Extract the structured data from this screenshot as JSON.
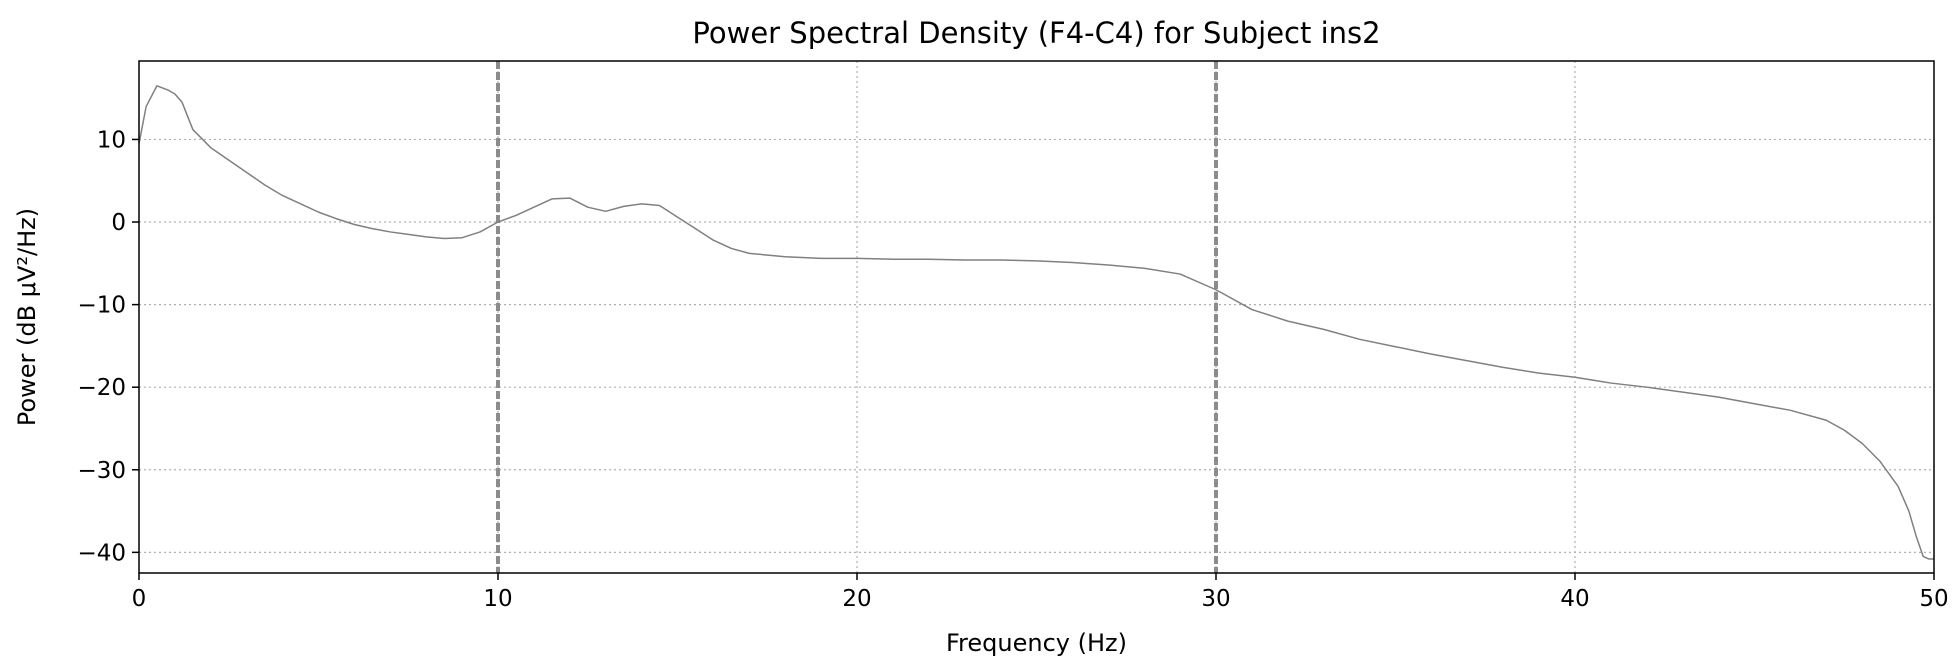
{
  "chart_data": {
    "type": "line",
    "title": "Power Spectral Density (F4-C4) for Subject ins2",
    "xlabel": "Frequency (Hz)",
    "ylabel": "Power (dB μV²/Hz)",
    "xlim": [
      0,
      50
    ],
    "ylim": [
      -42.5,
      19.5
    ],
    "xticks": [
      0,
      10,
      20,
      30,
      40,
      50
    ],
    "xtick_labels": [
      "0",
      "10",
      "20",
      "30",
      "40",
      "50"
    ],
    "yticks": [
      10,
      0,
      -10,
      -20,
      -30,
      -40
    ],
    "ytick_labels": [
      "10",
      "0",
      "−10",
      "−20",
      "−30",
      "−40"
    ],
    "grid": true,
    "vertical_markers": [
      10,
      30
    ],
    "series": [
      {
        "name": "F4-C4",
        "color": "#808080",
        "x": [
          0,
          0.2,
          0.5,
          0.8,
          1.0,
          1.2,
          1.5,
          2.0,
          2.5,
          3.0,
          3.5,
          4.0,
          4.5,
          5.0,
          5.5,
          6.0,
          6.5,
          7.0,
          7.5,
          8.0,
          8.5,
          9.0,
          9.5,
          10.0,
          10.5,
          11.0,
          11.5,
          12.0,
          12.5,
          13.0,
          13.5,
          14.0,
          14.5,
          15.0,
          15.5,
          16.0,
          16.5,
          17.0,
          18.0,
          19.0,
          20.0,
          21.0,
          22.0,
          23.0,
          24.0,
          25.0,
          26.0,
          27.0,
          28.0,
          29.0,
          30.0,
          31.0,
          32.0,
          33.0,
          34.0,
          35.0,
          36.0,
          37.0,
          38.0,
          39.0,
          40.0,
          41.0,
          42.0,
          43.0,
          44.0,
          45.0,
          46.0,
          47.0,
          47.5,
          48.0,
          48.5,
          49.0,
          49.3,
          49.5,
          49.7,
          49.85,
          50.0
        ],
        "y": [
          9.5,
          14,
          16.5,
          16,
          15.5,
          14.5,
          11.2,
          9,
          7.5,
          6,
          4.5,
          3.2,
          2.2,
          1.2,
          0.4,
          -0.3,
          -0.8,
          -1.2,
          -1.5,
          -1.8,
          -2.0,
          -1.9,
          -1.2,
          0.0,
          0.8,
          1.8,
          2.8,
          2.9,
          1.8,
          1.3,
          1.9,
          2.2,
          2.0,
          0.6,
          -0.8,
          -2.2,
          -3.2,
          -3.8,
          -4.2,
          -4.4,
          -4.4,
          -4.5,
          -4.5,
          -4.6,
          -4.6,
          -4.7,
          -4.9,
          -5.2,
          -5.6,
          -6.3,
          -8.2,
          -10.6,
          -12.0,
          -13.0,
          -14.2,
          -15.1,
          -16.0,
          -16.8,
          -17.6,
          -18.3,
          -18.8,
          -19.5,
          -20.0,
          -20.6,
          -21.2,
          -22.0,
          -22.8,
          -24.0,
          -25.2,
          -26.8,
          -29.0,
          -32.0,
          -35.0,
          -38.0,
          -40.5,
          -40.8,
          -40.8
        ]
      }
    ]
  }
}
